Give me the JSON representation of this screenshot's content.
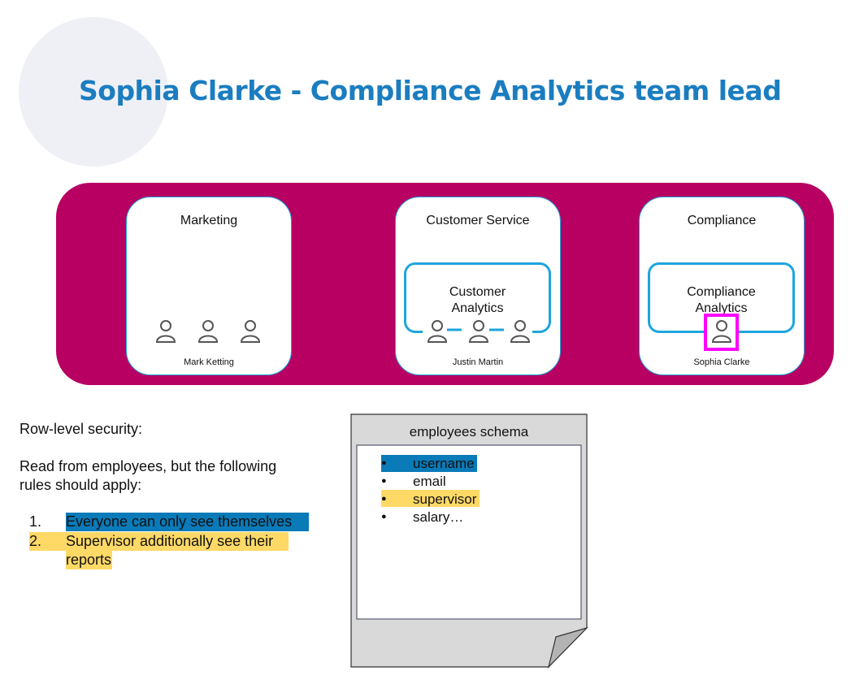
{
  "title": "Sophia Clarke - Compliance Analytics team lead",
  "colors": {
    "title": "#1b7dc0",
    "band": "#b80062",
    "team_border": "#1ea5dd",
    "highlight_user": "#ff00ff",
    "rule_blue": "#0a7ab8",
    "rule_yellow": "#ffd966"
  },
  "departments": [
    {
      "name": "Marketing",
      "person": "Mark Ketting",
      "icon": "person-icon"
    },
    {
      "name": "Customer Service",
      "team": "Customer\nAnalytics",
      "person": "Justin Martin",
      "icon": "person-icon"
    },
    {
      "name": "Compliance",
      "team": "Compliance\nAnalytics",
      "person": "Sophia Clarke",
      "icon": "person-icon"
    }
  ],
  "rules": {
    "heading": "Row-level security:",
    "intro_line1": "Read from employees, but the following",
    "intro_line2": "rules should apply:",
    "items": [
      {
        "num": "1.",
        "text": "Everyone can only see themselves"
      },
      {
        "num": "2.",
        "text_line1": "Supervisor additionally see their",
        "text_line2": "reports"
      }
    ]
  },
  "schema": {
    "title": "employees schema",
    "fields": [
      "username",
      "email",
      "supervisor",
      "salary…"
    ]
  }
}
